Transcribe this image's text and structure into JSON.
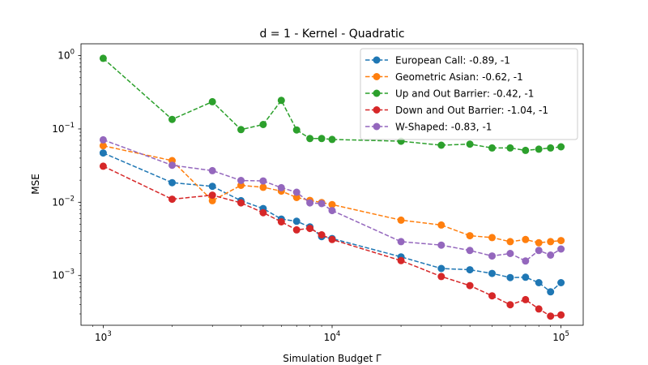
{
  "chart_data": {
    "type": "line",
    "title": "d = 1 - Kernel - Quadratic",
    "xlabel": "Simulation Budget Γ",
    "ylabel": "MSE",
    "xscale": "log",
    "yscale": "log",
    "xlim": [
      800,
      125000
    ],
    "ylim": [
      0.00021,
      1.45
    ],
    "x_ticks": [
      {
        "value": 1000,
        "base": "10",
        "exp": "3"
      },
      {
        "value": 10000,
        "base": "10",
        "exp": "4"
      },
      {
        "value": 100000,
        "base": "10",
        "exp": "5"
      }
    ],
    "y_ticks": [
      {
        "value": 0.001,
        "base": "10",
        "exp": "−3"
      },
      {
        "value": 0.01,
        "base": "10",
        "exp": "−2"
      },
      {
        "value": 0.1,
        "base": "10",
        "exp": "−1"
      },
      {
        "value": 1,
        "base": "10",
        "exp": "0"
      }
    ],
    "grid": false,
    "legend_position": "top-right",
    "x": [
      1000,
      2000,
      3000,
      4000,
      5000,
      6000,
      7000,
      8000,
      9000,
      10000,
      20000,
      30000,
      40000,
      50000,
      60000,
      70000,
      80000,
      90000,
      100000
    ],
    "series": [
      {
        "name": "European Call: -0.89, -1",
        "color": "#1f77b4",
        "values": [
          0.047,
          0.0185,
          0.0165,
          0.0105,
          0.0082,
          0.0059,
          0.0055,
          0.0046,
          0.0034,
          0.0032,
          0.0018,
          0.00125,
          0.0012,
          0.00107,
          0.00094,
          0.00095,
          0.0008,
          0.0006,
          0.0008
        ]
      },
      {
        "name": "Geometric Asian: -0.62, -1",
        "color": "#ff7f0e",
        "values": [
          0.059,
          0.037,
          0.0105,
          0.017,
          0.016,
          0.0142,
          0.0116,
          0.0106,
          0.0099,
          0.0093,
          0.0057,
          0.0049,
          0.0035,
          0.0033,
          0.0029,
          0.0031,
          0.0028,
          0.0029,
          0.003
        ]
      },
      {
        "name": "Up and Out Barrier: -0.42, -1",
        "color": "#2ca02c",
        "values": [
          0.92,
          0.135,
          0.235,
          0.098,
          0.115,
          0.245,
          0.097,
          0.074,
          0.074,
          0.072,
          0.068,
          0.06,
          0.062,
          0.055,
          0.055,
          0.051,
          0.053,
          0.055,
          0.057
        ]
      },
      {
        "name": "Down and Out Barrier: -1.04, -1",
        "color": "#d62728",
        "values": [
          0.031,
          0.011,
          0.0125,
          0.0098,
          0.0072,
          0.0054,
          0.0042,
          0.0044,
          0.0036,
          0.0031,
          0.0016,
          0.00097,
          0.00073,
          0.00053,
          0.0004,
          0.00047,
          0.00035,
          0.00028,
          0.00029
        ]
      },
      {
        "name": "W-Shaped: -0.83, -1",
        "color": "#9467bd",
        "values": [
          0.071,
          0.032,
          0.027,
          0.0198,
          0.0195,
          0.0158,
          0.0137,
          0.0098,
          0.0096,
          0.0077,
          0.0029,
          0.0026,
          0.0022,
          0.00185,
          0.002,
          0.00158,
          0.0022,
          0.0019,
          0.0023
        ]
      }
    ]
  }
}
